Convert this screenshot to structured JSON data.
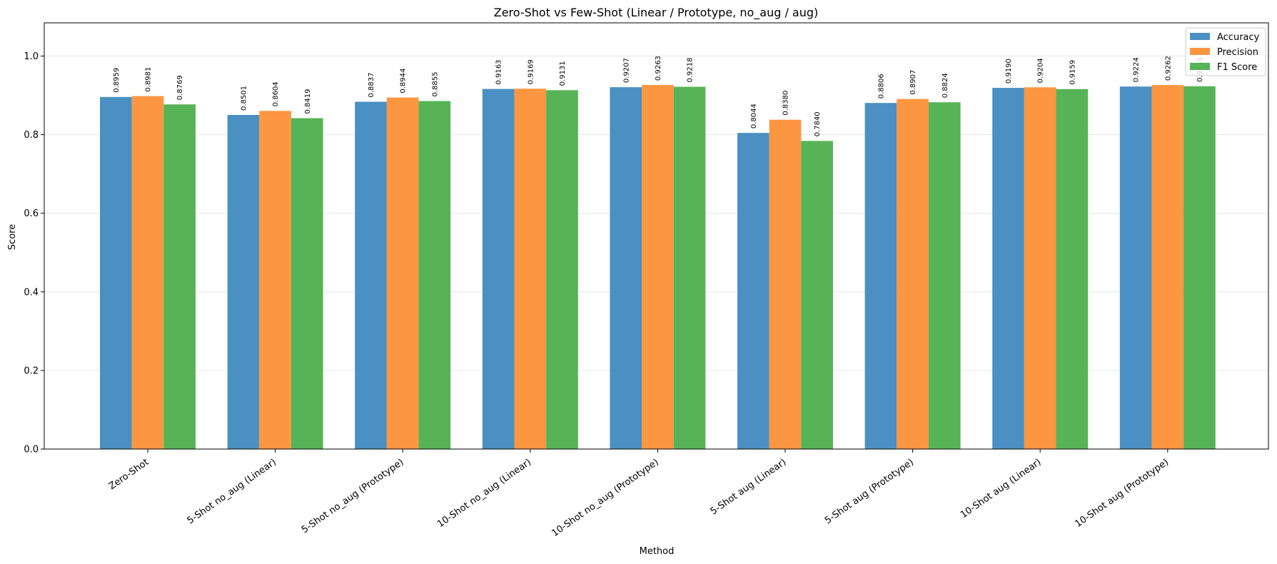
{
  "chart_data": {
    "type": "bar",
    "title": "Zero-Shot vs Few-Shot (Linear / Prototype, no_aug / aug)",
    "xlabel": "Method",
    "ylabel": "Score",
    "ylim": [
      0,
      1.08
    ],
    "yticks": [
      "0.0",
      "0.2",
      "0.4",
      "0.6",
      "0.8",
      "1.0"
    ],
    "grid": "y",
    "legend_position": "upper right",
    "categories": [
      "Zero-Shot",
      "5-Shot no_aug (Linear)",
      "5-Shot no_aug (Prototype)",
      "10-Shot no_aug (Linear)",
      "10-Shot no_aug (Prototype)",
      "5-Shot aug (Linear)",
      "5-Shot aug (Prototype)",
      "10-Shot aug (Linear)",
      "10-Shot aug (Prototype)"
    ],
    "series": [
      {
        "name": "Accuracy",
        "color": "#4a90c2",
        "values": [
          0.8959,
          0.8501,
          0.8837,
          0.9163,
          0.9207,
          0.8044,
          0.8806,
          0.919,
          0.9224
        ]
      },
      {
        "name": "Precision",
        "color": "#fd9640",
        "values": [
          0.8981,
          0.8604,
          0.8944,
          0.9169,
          0.9263,
          0.838,
          0.8907,
          0.9204,
          0.9262
        ]
      },
      {
        "name": "F1 Score",
        "color": "#56b356",
        "values": [
          0.8769,
          0.8419,
          0.8855,
          0.9131,
          0.9218,
          0.784,
          0.8824,
          0.9159,
          0.9231
        ]
      }
    ]
  }
}
